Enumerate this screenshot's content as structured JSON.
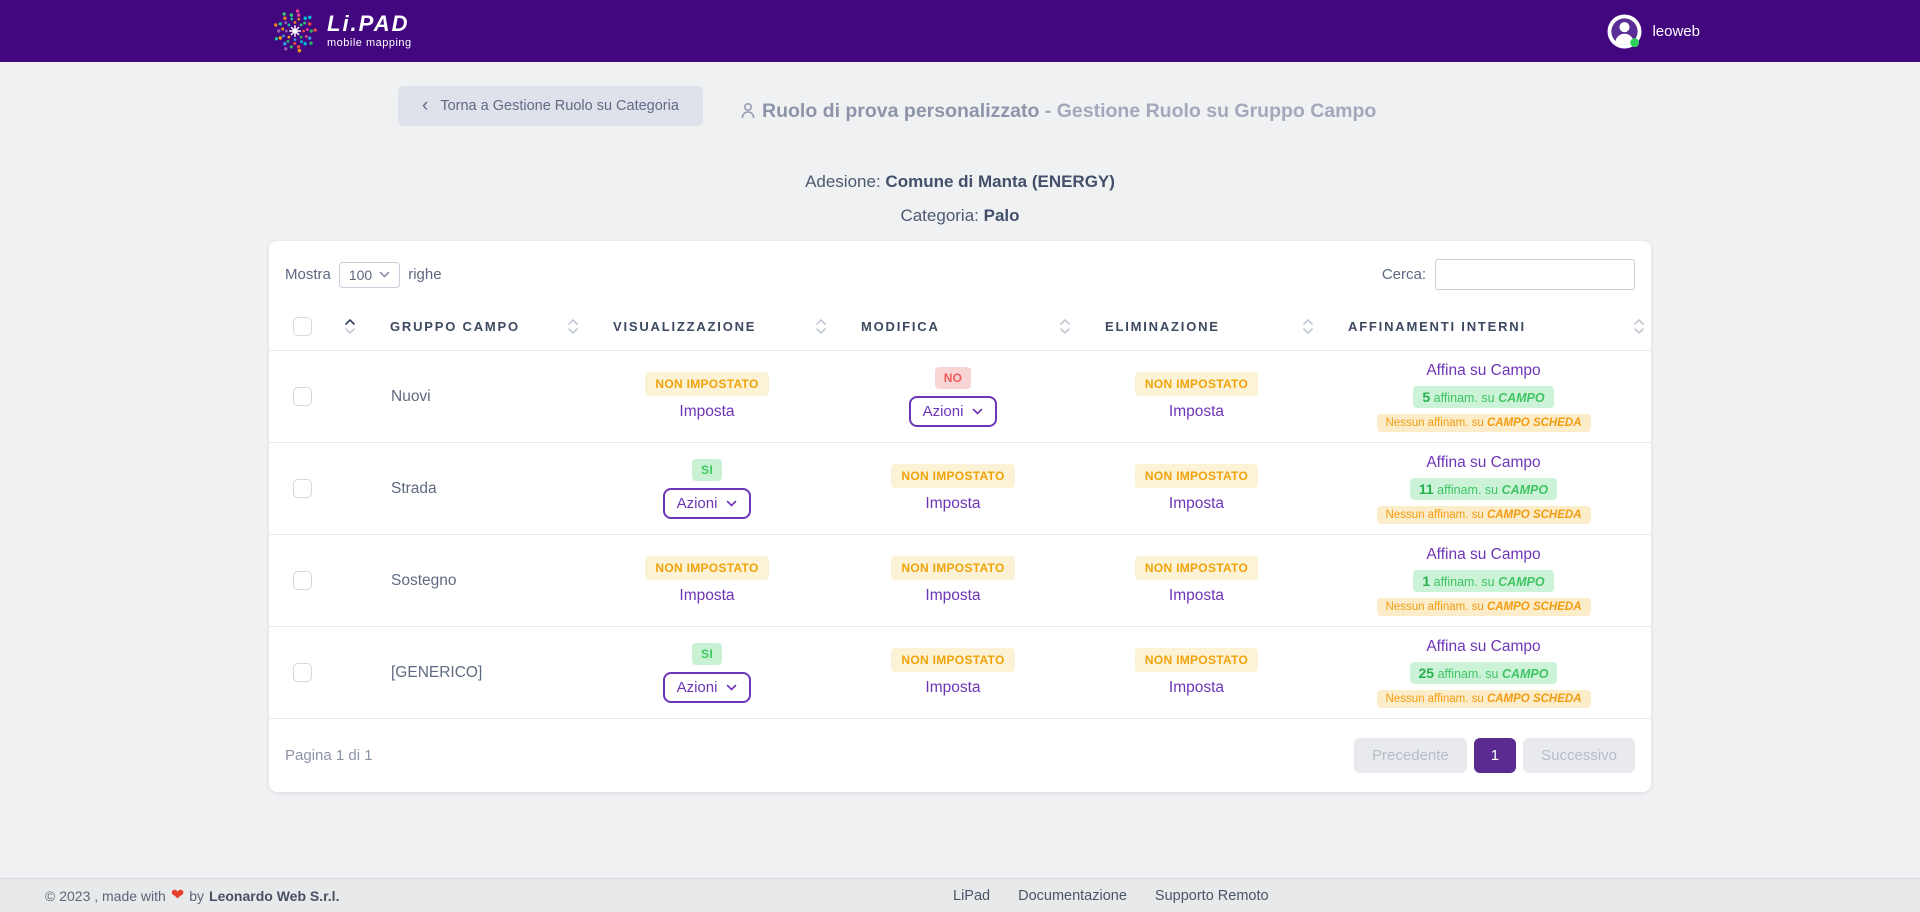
{
  "navbar": {
    "logo_title": "Li.PAD",
    "logo_subtitle": "mobile mapping",
    "username": "leoweb"
  },
  "page": {
    "back_chevron": "‹",
    "back_button": "Torna a Gestione Ruolo su Categoria",
    "title_role": "Ruolo di prova personalizzato",
    "title_separator": "-",
    "title_rest": "Gestione Ruolo su Gruppo Campo",
    "adesione_label": "Adesione:",
    "adesione_value": "Comune di Manta (ENERGY)",
    "categoria_label": "Categoria:",
    "categoria_value": "Palo"
  },
  "table": {
    "length_label_before": "Mostra",
    "length_value": "100",
    "length_label_after": "righe",
    "search_label": "Cerca:",
    "search_value": "",
    "columns": [
      "GRUPPO CAMPO",
      "VISUALIZZAZIONE",
      "MODIFICA",
      "ELIMINAZIONE",
      "AFFINAMENTI INTERNI"
    ],
    "badge_labels": {
      "not_set": "NON IMPOSTATO",
      "yes": "SI",
      "no": "NO"
    },
    "action_labels": {
      "imposta": "Imposta",
      "azioni": "Azioni",
      "affina": "Affina su Campo"
    },
    "affin_text": {
      "suffix": "affinam. su",
      "campo": "CAMPO",
      "none_prefix": "Nessun affinam. su",
      "scheda": "CAMPO SCHEDA"
    },
    "rows": [
      {
        "gruppo": "Nuovi",
        "visualizzazione": {
          "badge": "not_set",
          "action": "imposta"
        },
        "modifica": {
          "badge": "no",
          "action": "azioni"
        },
        "eliminazione": {
          "badge": "not_set",
          "action": "imposta"
        },
        "campo_count": "5"
      },
      {
        "gruppo": "Strada",
        "visualizzazione": {
          "badge": "yes",
          "action": "azioni"
        },
        "modifica": {
          "badge": "not_set",
          "action": "imposta"
        },
        "eliminazione": {
          "badge": "not_set",
          "action": "imposta"
        },
        "campo_count": "11"
      },
      {
        "gruppo": "Sostegno",
        "visualizzazione": {
          "badge": "not_set",
          "action": "imposta"
        },
        "modifica": {
          "badge": "not_set",
          "action": "imposta"
        },
        "eliminazione": {
          "badge": "not_set",
          "action": "imposta"
        },
        "campo_count": "1"
      },
      {
        "gruppo": "[GENERICO]",
        "visualizzazione": {
          "badge": "yes",
          "action": "azioni"
        },
        "modifica": {
          "badge": "not_set",
          "action": "imposta"
        },
        "eliminazione": {
          "badge": "not_set",
          "action": "imposta"
        },
        "campo_count": "25"
      }
    ],
    "pagination": {
      "info": "Pagina 1 di 1",
      "previous": "Precedente",
      "current_page": "1",
      "next": "Successivo"
    }
  },
  "footer": {
    "copyright_before_heart": "© 2023 , made with",
    "heart": "❤",
    "copyright_after_heart": "by",
    "company": "Leonardo Web S.r.l.",
    "links": [
      "LiPad",
      "Documentazione",
      "Supporto Remoto"
    ]
  },
  "colors": {
    "navbar_bg": "#42067f",
    "accent_purple": "#6d35b8",
    "badge_warning_text": "#f0a30a",
    "badge_success_text": "#3fc464",
    "badge_danger_text": "#ee5d5d",
    "pagination_active_bg": "#5c2b92",
    "online_dot": "#2fd15c"
  }
}
